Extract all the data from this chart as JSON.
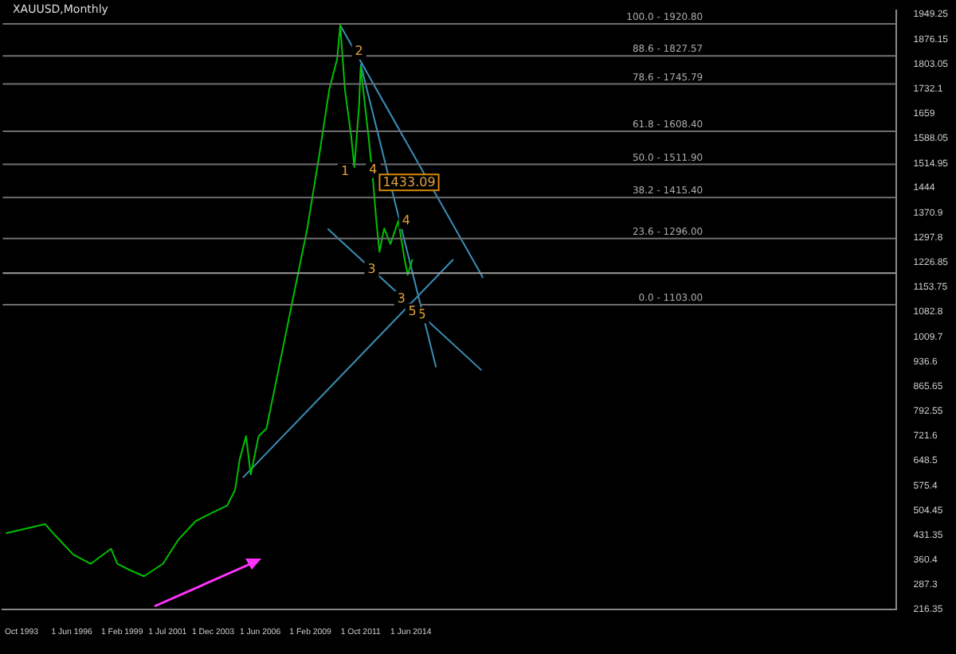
{
  "chart_data": {
    "type": "line",
    "title": "XAUUSD,Monthly",
    "xlim": [
      "1992-10",
      "2040-03"
    ],
    "xticks": [
      {
        "value": "1993-10",
        "label": "Oct 1993"
      },
      {
        "value": "1996-06",
        "label": "1 Jun 1996"
      },
      {
        "value": "1999-02",
        "label": "1 Feb 1999"
      },
      {
        "value": "2001-07",
        "label": "1 Jul 2001"
      },
      {
        "value": "2003-12",
        "label": "1 Dec 2003"
      },
      {
        "value": "2006-06",
        "label": "1 Jun 2006"
      },
      {
        "value": "2009-02",
        "label": "1 Feb 2009"
      },
      {
        "value": "2011-10",
        "label": "1 Oct 2011"
      },
      {
        "value": "2014-06",
        "label": "1 Jun 2014"
      }
    ],
    "ylim": [
      216.35,
      1960
    ],
    "yticks": [
      216.35,
      287.3,
      360.4,
      431.35,
      504.45,
      575.4,
      648.5,
      721.6,
      792.55,
      865.65,
      936.6,
      1009.7,
      1082.8,
      1153.75,
      1226.85,
      1297.8,
      1370.9,
      1444.0,
      1514.95,
      1588.05,
      1659.0,
      1732.1,
      1803.05,
      1876.15,
      1949.25
    ],
    "grid": false,
    "legend": false,
    "marker": "none",
    "line_style": "solid",
    "series": [
      {
        "color": "#00c000",
        "x": [
          "1992-12",
          "1995-01",
          "1995-07",
          "1996-07",
          "1997-06",
          "1998-07",
          "1998-11",
          "1999-07",
          "2000-04",
          "2001-04",
          "2002-02",
          "2003-01",
          "2003-11",
          "2004-09",
          "2005-02",
          "2005-05",
          "2005-09",
          "2005-12",
          "2006-05",
          "2006-10",
          "2007-04",
          "2008-02",
          "2008-12",
          "2009-08",
          "2010-02",
          "2010-07",
          "2010-09",
          "2010-12",
          "2011-04",
          "2011-06",
          "2011-09",
          "2011-10",
          "2012-03",
          "2012-06",
          "2012-08",
          "2012-10",
          "2013-01",
          "2013-05",
          "2013-10",
          "2014-02",
          "2014-04",
          "2014-07"
        ],
        "values": [
          437,
          464,
          433,
          375,
          348,
          392,
          348,
          330,
          312,
          348,
          419,
          473,
          496,
          518,
          563,
          653,
          720,
          608,
          720,
          742,
          876,
          1101,
          1325,
          1549,
          1729,
          1818,
          1917,
          1729,
          1593,
          1504,
          1684,
          1796,
          1593,
          1459,
          1347,
          1257,
          1325,
          1280,
          1347,
          1235,
          1190,
          1235
        ]
      },
      {
        "color": "#3a8fb7",
        "x": [
          "2005-07",
          "2016-09"
        ],
        "values": [
          599,
          1235
        ]
      },
      {
        "color": "#3a8fb7",
        "x": [
          "2010-01",
          "2018-03"
        ],
        "values": [
          1324,
          912
        ]
      },
      {
        "color": "#3a8fb7",
        "x": [
          "2010-09",
          "2018-04"
        ],
        "values": [
          1917,
          1181
        ]
      },
      {
        "color": "#3a8fb7",
        "x": [
          "2011-10",
          "2015-10"
        ],
        "values": [
          1804,
          921
        ]
      }
    ],
    "ref_lines": [
      {
        "axis": "y",
        "value": 1920.8,
        "color": "#6e6e6e"
      },
      {
        "axis": "y",
        "value": 1827.57,
        "color": "#6e6e6e"
      },
      {
        "axis": "y",
        "value": 1745.79,
        "color": "#6e6e6e"
      },
      {
        "axis": "y",
        "value": 1608.4,
        "color": "#6e6e6e"
      },
      {
        "axis": "y",
        "value": 1511.9,
        "color": "#6e6e6e"
      },
      {
        "axis": "y",
        "value": 1415.4,
        "color": "#6e6e6e"
      },
      {
        "axis": "y",
        "value": 1296.0,
        "color": "#6e6e6e"
      },
      {
        "axis": "y",
        "value": 1103.0,
        "color": "#6e6e6e"
      },
      {
        "axis": "y",
        "value": 1195,
        "color": "#9a9a9a"
      }
    ],
    "annotations": [
      {
        "text": "1",
        "x": "2010-12",
        "y": 1491
      },
      {
        "text": "2",
        "x": "2011-09",
        "y": 1840
      },
      {
        "text": "3",
        "x": "2012-05",
        "y": 1206
      },
      {
        "text": "4",
        "x": "2012-06",
        "y": 1495
      },
      {
        "text": "5",
        "x": "2015-01",
        "y": 1072
      },
      {
        "text": "3",
        "x": "2013-12",
        "y": 1119
      },
      {
        "text": "4",
        "x": "2014-03",
        "y": 1347
      },
      {
        "text": "5",
        "x": "2014-07",
        "y": 1083
      },
      {
        "text": "1433.09",
        "x": "2012-06",
        "y": 1459
      },
      {
        "text": "100.0 - 1920.80",
        "x": "2029-12",
        "y": 1920.8
      },
      {
        "text": "88.6 - 1827.57",
        "x": "2029-12",
        "y": 1827.57
      },
      {
        "text": "78.6 - 1745.79",
        "x": "2029-12",
        "y": 1745.79
      },
      {
        "text": "61.8 - 1608.40",
        "x": "2029-12",
        "y": 1608.4
      },
      {
        "text": "50.0 - 1511.90",
        "x": "2029-12",
        "y": 1511.9
      },
      {
        "text": "38.2 - 1415.40",
        "x": "2029-12",
        "y": 1415.4
      },
      {
        "text": "23.6 - 1296.00",
        "x": "2029-12",
        "y": 1296.0
      },
      {
        "text": "0.0 - 1103.00",
        "x": "2029-12",
        "y": 1103.0
      }
    ]
  }
}
